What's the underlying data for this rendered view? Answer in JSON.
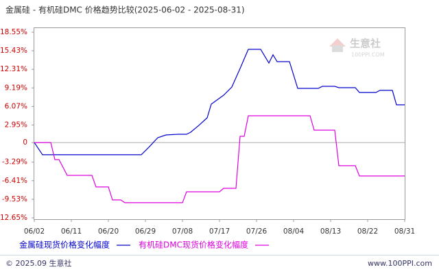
{
  "chart_data": {
    "type": "line",
    "title": "金属硅 - 有机硅DMC 价格趋势比较(2025-06-02 - 2025-08-31)",
    "xlim": [
      "06/02",
      "08/31"
    ],
    "xticks": [
      "06/02",
      "06/11",
      "06/20",
      "06/29",
      "07/08",
      "07/17",
      "07/26",
      "08/04",
      "08/13",
      "08/22",
      "08/31"
    ],
    "ylim": [
      -12.65,
      18.55
    ],
    "yticks": [
      {
        "value": 18.55,
        "label": "18.55%"
      },
      {
        "value": 15.43,
        "label": "15.43%"
      },
      {
        "value": 12.31,
        "label": "12.31%"
      },
      {
        "value": 9.19,
        "label": "9.19%"
      },
      {
        "value": 6.07,
        "label": "6.07%"
      },
      {
        "value": 2.95,
        "label": "2.95%"
      },
      0,
      {
        "value": -3.29,
        "label": "-3.29%"
      },
      {
        "value": -6.41,
        "label": "-6.41%"
      },
      {
        "value": -9.53,
        "label": "-9.53%"
      },
      {
        "value": -12.65,
        "label": "-12.65%"
      }
    ],
    "series": [
      {
        "name": "金属硅现货价格变化幅度",
        "color": "#0000cc",
        "x": [
          "06/02",
          "06/04",
          "06/28",
          "06/30",
          "07/02",
          "07/04",
          "07/07",
          "07/09",
          "07/10",
          "07/12",
          "07/14",
          "07/15",
          "07/18",
          "07/20",
          "07/22",
          "07/24",
          "07/27",
          "07/29",
          "07/30",
          "07/31",
          "08/03",
          "08/05",
          "08/10",
          "08/11",
          "08/14",
          "08/15",
          "08/19",
          "08/20",
          "08/24",
          "08/25",
          "08/28",
          "08/29",
          "08/31"
        ],
        "values": [
          0,
          -2.05,
          -2.05,
          -0.67,
          0.82,
          1.28,
          1.4,
          1.4,
          1.74,
          2.9,
          4.16,
          6.46,
          7.96,
          9.34,
          12.45,
          15.67,
          15.67,
          13.37,
          14.75,
          13.6,
          13.6,
          9.11,
          9.11,
          9.46,
          9.46,
          9.23,
          9.23,
          8.42,
          8.42,
          8.77,
          8.77,
          6.35,
          6.35
        ]
      },
      {
        "name": "有机硅DMC现货价格变化幅度",
        "color": "#dd00dd",
        "x": [
          "06/02",
          "06/06",
          "06/07",
          "06/08",
          "06/10",
          "06/16",
          "06/17",
          "06/20",
          "06/21",
          "06/23",
          "06/24",
          "07/08",
          "07/09",
          "07/17",
          "07/18",
          "07/21",
          "07/22",
          "07/23",
          "07/24",
          "08/08",
          "08/09",
          "08/14",
          "08/15",
          "08/19",
          "08/20",
          "08/31"
        ],
        "values": [
          0,
          0,
          -2.86,
          -2.86,
          -5.51,
          -5.51,
          -7.46,
          -7.46,
          -9.65,
          -9.65,
          -10.11,
          -10.11,
          -8.27,
          -8.27,
          -7.69,
          -7.69,
          1.05,
          1.05,
          4.51,
          4.51,
          2.09,
          2.09,
          -3.89,
          -3.89,
          -5.62,
          -5.62
        ]
      }
    ],
    "watermark": "生意社",
    "watermark_url": "100PPI.COM",
    "footer_left": "© 2025.09 生意社",
    "footer_right": "www.100PPI.com"
  }
}
